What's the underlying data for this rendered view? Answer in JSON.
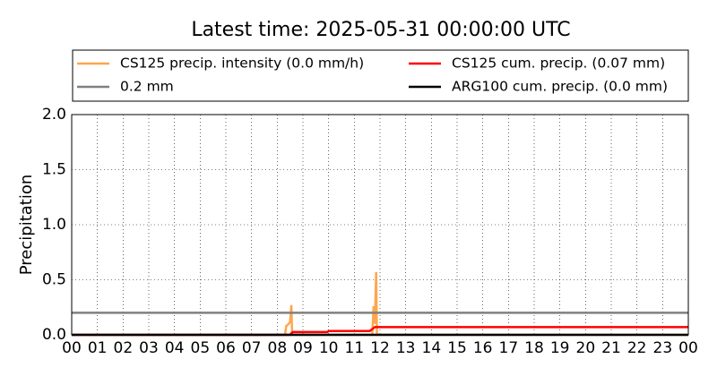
{
  "chart_data": {
    "type": "line",
    "title": "Latest time: 2025-05-31 00:00:00 UTC",
    "y_label": "Precipitation",
    "xlim": [
      0,
      24
    ],
    "ylim": [
      0,
      2
    ],
    "xticks": [
      {
        "value": 0,
        "label": "00"
      },
      {
        "value": 1,
        "label": "01"
      },
      {
        "value": 2,
        "label": "02"
      },
      {
        "value": 3,
        "label": "03"
      },
      {
        "value": 4,
        "label": "04"
      },
      {
        "value": 5,
        "label": "05"
      },
      {
        "value": 6,
        "label": "06"
      },
      {
        "value": 7,
        "label": "07"
      },
      {
        "value": 8,
        "label": "08"
      },
      {
        "value": 9,
        "label": "09"
      },
      {
        "value": 10,
        "label": "10"
      },
      {
        "value": 11,
        "label": "11"
      },
      {
        "value": 12,
        "label": "12"
      },
      {
        "value": 13,
        "label": "13"
      },
      {
        "value": 14,
        "label": "14"
      },
      {
        "value": 15,
        "label": "15"
      },
      {
        "value": 16,
        "label": "16"
      },
      {
        "value": 17,
        "label": "17"
      },
      {
        "value": 18,
        "label": "18"
      },
      {
        "value": 19,
        "label": "19"
      },
      {
        "value": 20,
        "label": "20"
      },
      {
        "value": 21,
        "label": "21"
      },
      {
        "value": 22,
        "label": "22"
      },
      {
        "value": 23,
        "label": "23"
      },
      {
        "value": 24,
        "label": "00"
      }
    ],
    "yticks": [
      {
        "value": 0,
        "label": "0.0"
      },
      0.5,
      {
        "value": 1,
        "label": "1.0"
      },
      1.5,
      {
        "value": 2,
        "label": "2.0"
      }
    ],
    "grid": true,
    "series": [
      {
        "name": "CS125 precip. intensity (0.0 mm/h)",
        "color": "#ffa64d",
        "x": [
          0,
          8.3,
          8.35,
          8.45,
          8.5,
          8.55,
          8.58,
          11.7,
          11.75,
          11.8,
          11.85,
          11.88,
          24
        ],
        "values": [
          0,
          0,
          0.08,
          0.1,
          0.12,
          0.27,
          0,
          0,
          0.26,
          0.1,
          0.57,
          0,
          0
        ]
      },
      {
        "name": "0.2 mm",
        "color": "#808080",
        "x": [
          0,
          24
        ],
        "values": [
          0.2,
          0.2
        ]
      },
      {
        "name": "CS125 cum. precip. (0.07 mm)",
        "color": "#ff0000",
        "x": [
          0,
          8.5,
          8.6,
          9.95,
          10.0,
          11.6,
          11.8,
          24
        ],
        "values": [
          0,
          0,
          0.025,
          0.025,
          0.035,
          0.035,
          0.07,
          0.07
        ]
      },
      {
        "name": "ARG100 cum. precip. (0.0 mm)",
        "color": "#000000",
        "x": [
          0,
          24
        ],
        "values": [
          0,
          0
        ]
      }
    ]
  }
}
